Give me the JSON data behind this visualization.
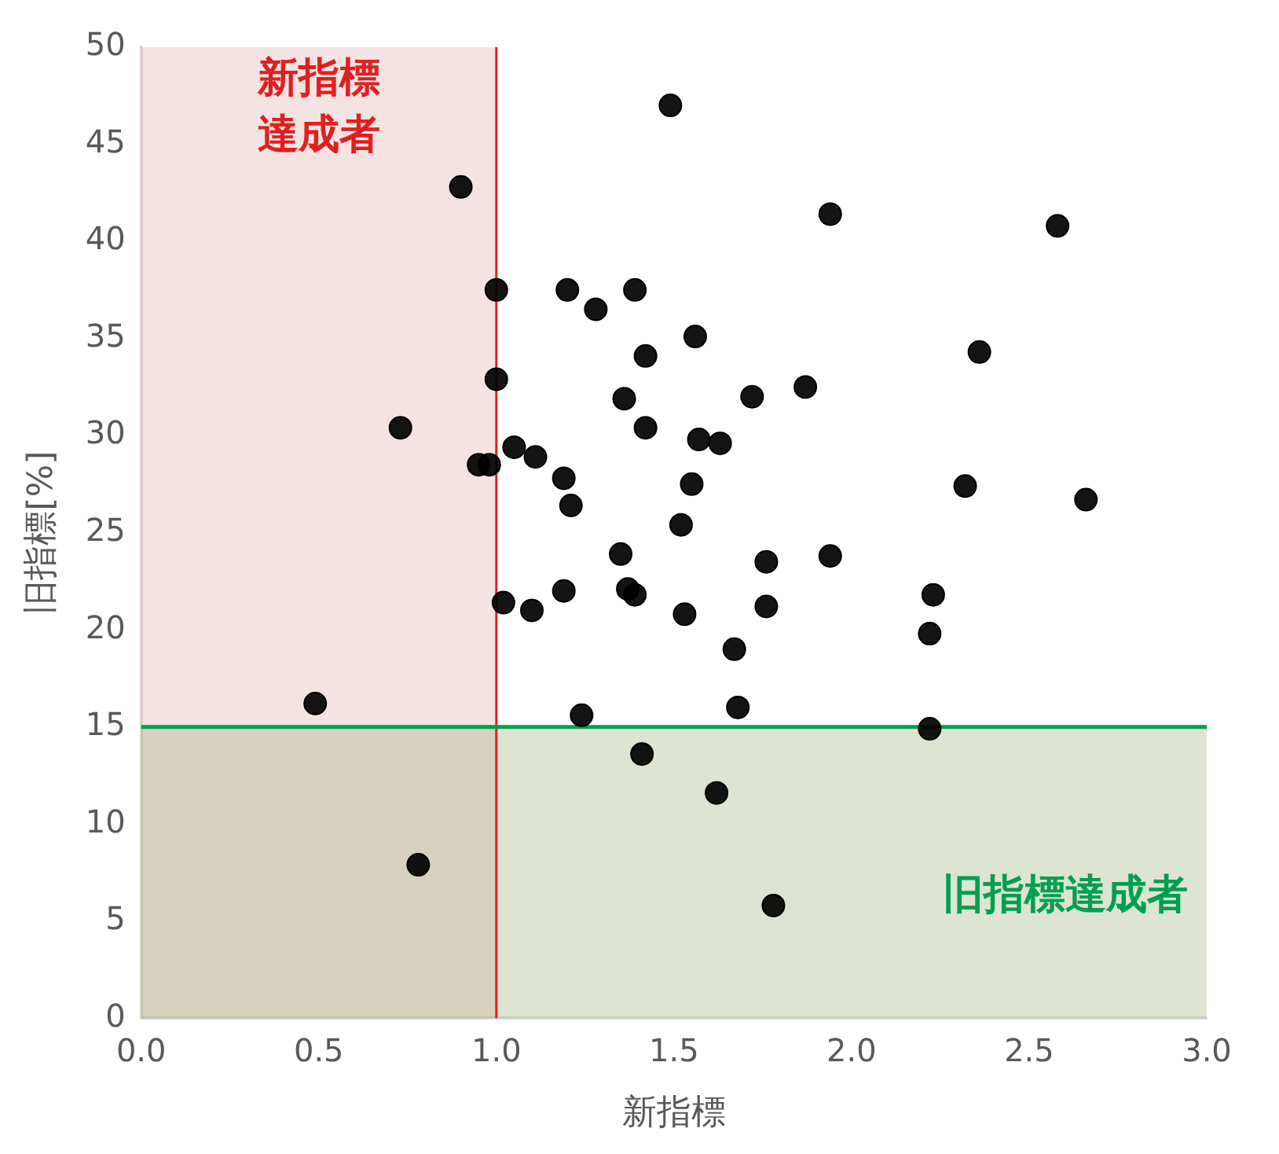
{
  "chart_data": {
    "type": "scatter",
    "xlabel": "新指標",
    "ylabel": "旧指標[%]",
    "xlim": [
      0,
      3
    ],
    "ylim": [
      0,
      50
    ],
    "xticks": [
      {
        "value": 0,
        "label": "0.0"
      },
      {
        "value": 0.5,
        "label": "0.5"
      },
      {
        "value": 1,
        "label": "1.0"
      },
      {
        "value": 1.5,
        "label": "1.5"
      },
      {
        "value": 2,
        "label": "2.0"
      },
      {
        "value": 2.5,
        "label": "2.5"
      },
      {
        "value": 3,
        "label": "3.0"
      }
    ],
    "yticks": [
      0,
      5,
      10,
      15,
      20,
      25,
      30,
      35,
      40,
      45,
      50
    ],
    "grid": false,
    "legend": false,
    "marker": "circle",
    "series": [
      {
        "color": "#000000",
        "x": [
          1.49,
          0.9,
          1.94,
          2.58,
          1.0,
          1.2,
          1.39,
          1.28,
          1.56,
          1.42,
          2.36,
          1.0,
          1.36,
          1.72,
          1.87,
          0.73,
          1.42,
          1.57,
          1.63,
          1.05,
          1.11,
          0.95,
          0.98,
          1.19,
          1.55,
          2.32,
          2.66,
          1.21,
          1.52,
          1.35,
          1.76,
          1.94,
          1.37,
          1.39,
          1.19,
          2.23,
          1.02,
          1.1,
          1.53,
          1.76,
          1.67,
          2.22,
          0.49,
          1.24,
          1.68,
          2.22,
          1.41,
          1.62,
          0.78,
          1.78
        ],
        "values": [
          47.0,
          42.8,
          41.4,
          40.8,
          37.5,
          37.5,
          37.5,
          36.5,
          35.1,
          34.1,
          34.3,
          32.9,
          31.9,
          32.0,
          32.5,
          30.4,
          30.4,
          29.8,
          29.6,
          29.4,
          28.9,
          28.5,
          28.5,
          27.8,
          27.5,
          27.4,
          26.7,
          26.4,
          25.4,
          23.9,
          23.5,
          23.8,
          22.1,
          21.8,
          22.0,
          21.8,
          21.4,
          21.0,
          20.8,
          21.2,
          19.0,
          19.8,
          16.2,
          15.6,
          16.0,
          14.9,
          13.6,
          11.6,
          7.9,
          5.8
        ]
      }
    ],
    "bands": [
      {
        "axis": "x",
        "from": 0,
        "to": 1,
        "label": "新指標達成者",
        "color": "#dc9a9a"
      },
      {
        "axis": "y",
        "from": 0,
        "to": 15,
        "label": "旧指標達成者",
        "color": "#9fb27a"
      }
    ],
    "ref_lines": [
      {
        "axis": "x",
        "value": 1,
        "color": "#e02020"
      },
      {
        "axis": "y",
        "value": 15,
        "color": "#00a050"
      }
    ]
  }
}
